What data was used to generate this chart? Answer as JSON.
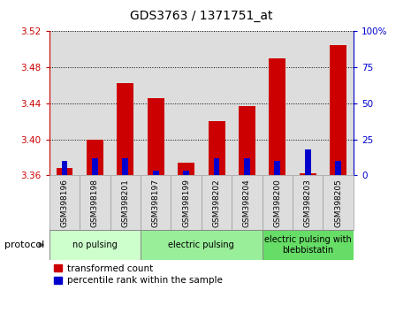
{
  "title": "GDS3763 / 1371751_at",
  "samples": [
    "GSM398196",
    "GSM398198",
    "GSM398201",
    "GSM398197",
    "GSM398199",
    "GSM398202",
    "GSM398204",
    "GSM398200",
    "GSM398203",
    "GSM398205"
  ],
  "red_values": [
    3.368,
    3.4,
    3.462,
    3.446,
    3.374,
    3.42,
    3.437,
    3.49,
    3.362,
    3.505
  ],
  "blue_values": [
    10,
    12,
    12,
    3,
    3,
    12,
    12,
    10,
    18,
    10
  ],
  "ymin": 3.36,
  "ymax": 3.52,
  "y2min": 0,
  "y2max": 100,
  "yticks": [
    3.36,
    3.4,
    3.44,
    3.48,
    3.52
  ],
  "y2ticks": [
    0,
    25,
    50,
    75,
    100
  ],
  "groups": [
    {
      "label": "no pulsing",
      "start": 0,
      "end": 3,
      "color": "#ccffcc"
    },
    {
      "label": "electric pulsing",
      "start": 3,
      "end": 7,
      "color": "#99ee99"
    },
    {
      "label": "electric pulsing with\nblebbistatin",
      "start": 7,
      "end": 10,
      "color": "#66dd66"
    }
  ],
  "bar_width": 0.55,
  "blue_bar_width": 0.2,
  "red_color": "#cc0000",
  "blue_color": "#0000cc",
  "col_bg_color": "#dddddd",
  "left_axis_color": "#cc0000",
  "right_axis_color": "#0000cc",
  "title_fontsize": 10,
  "tick_fontsize": 7.5,
  "label_fontsize": 7,
  "legend_fontsize": 7.5
}
